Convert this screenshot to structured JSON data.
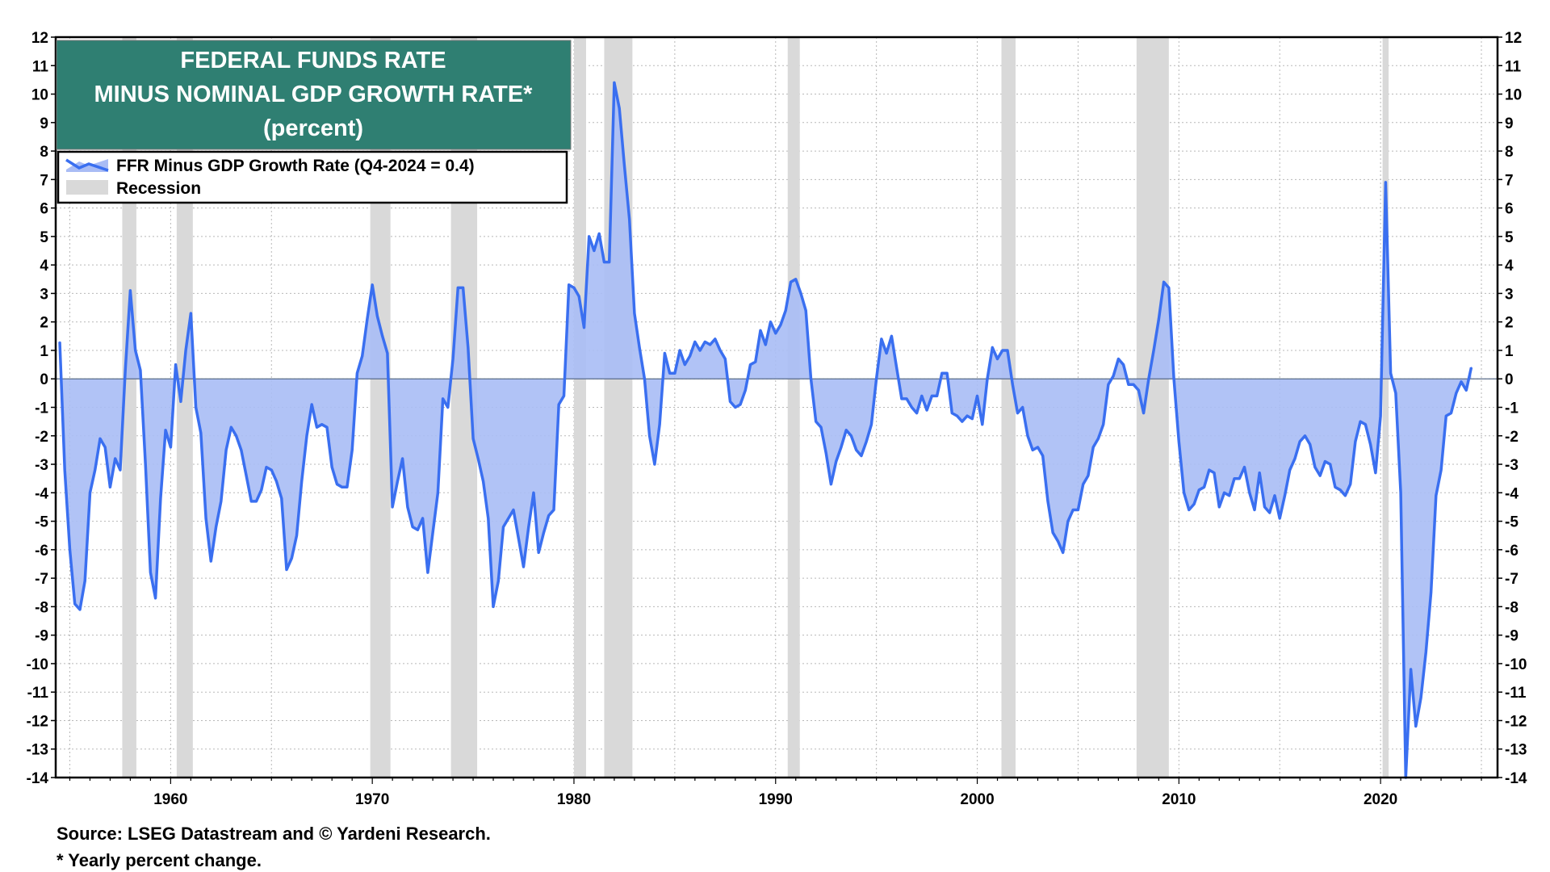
{
  "colors": {
    "series_line": "#3a6ff0",
    "series_fill": "#a9bcf5",
    "recession": "#d9d9d9",
    "title_bg": "#2f7f72",
    "title_text": "#ffffff"
  },
  "chart_data": {
    "type": "area",
    "title_lines": [
      "FEDERAL FUNDS RATE",
      "MINUS NOMINAL GDP GROWTH RATE*",
      "(percent)"
    ],
    "xlabel": "",
    "ylabel": "",
    "xlim": [
      1954.3,
      2025.8
    ],
    "ylim": [
      -14,
      12
    ],
    "y_ticks": [
      -14,
      -13,
      -12,
      -11,
      -10,
      -9,
      -8,
      -7,
      -6,
      -5,
      -4,
      -3,
      -2,
      -1,
      0,
      1,
      2,
      3,
      4,
      5,
      6,
      7,
      8,
      9,
      10,
      11,
      12
    ],
    "y_tick_labels": [
      "-14",
      "-13",
      "-12",
      "-11",
      "-10",
      "-9",
      "-8",
      "-7",
      "-6",
      "-5",
      "-4",
      "-3",
      "-2",
      "-1",
      "0",
      "1",
      "2",
      "3",
      "4",
      "5",
      "6",
      "7",
      "8",
      "9",
      "10",
      "11",
      "12"
    ],
    "x_ticks": [
      1960,
      1970,
      1980,
      1990,
      2000,
      2010,
      2020
    ],
    "x_tick_labels": [
      "1960",
      "1970",
      "1980",
      "1990",
      "2000",
      "2010",
      "2020"
    ],
    "grid": true,
    "legend": {
      "position": "top-left",
      "entries": [
        {
          "label": "FFR Minus GDP Growth Rate  (Q4-2024 = 0.4)",
          "kind": "line-area"
        },
        {
          "label": "Recession",
          "kind": "band"
        }
      ]
    },
    "recessions": [
      [
        1957.6,
        1958.3
      ],
      [
        1960.3,
        1961.1
      ],
      [
        1969.9,
        1970.9
      ],
      [
        1973.9,
        1975.2
      ],
      [
        1980.0,
        1980.6
      ],
      [
        1981.5,
        1982.9
      ],
      [
        1990.6,
        1991.2
      ],
      [
        2001.2,
        2001.9
      ],
      [
        2007.9,
        2009.5
      ],
      [
        2020.1,
        2020.4
      ]
    ],
    "series": [
      {
        "name": "FFR Minus GDP Growth Rate",
        "points": [
          [
            1954.5,
            1.3
          ],
          [
            1954.75,
            -3.2
          ],
          [
            1955.0,
            -6.0
          ],
          [
            1955.25,
            -7.9
          ],
          [
            1955.5,
            -8.1
          ],
          [
            1955.75,
            -7.1
          ],
          [
            1956.0,
            -4.0
          ],
          [
            1956.25,
            -3.2
          ],
          [
            1956.5,
            -2.1
          ],
          [
            1956.75,
            -2.4
          ],
          [
            1957.0,
            -3.8
          ],
          [
            1957.25,
            -2.8
          ],
          [
            1957.5,
            -3.2
          ],
          [
            1957.75,
            0.3
          ],
          [
            1958.0,
            3.1
          ],
          [
            1958.25,
            1.0
          ],
          [
            1958.5,
            0.3
          ],
          [
            1958.75,
            -3.0
          ],
          [
            1959.0,
            -6.8
          ],
          [
            1959.25,
            -7.7
          ],
          [
            1959.5,
            -4.2
          ],
          [
            1959.75,
            -1.8
          ],
          [
            1960.0,
            -2.4
          ],
          [
            1960.25,
            0.5
          ],
          [
            1960.5,
            -0.8
          ],
          [
            1960.75,
            1.0
          ],
          [
            1961.0,
            2.3
          ],
          [
            1961.25,
            -1.0
          ],
          [
            1961.5,
            -1.9
          ],
          [
            1961.75,
            -4.9
          ],
          [
            1962.0,
            -6.4
          ],
          [
            1962.25,
            -5.2
          ],
          [
            1962.5,
            -4.3
          ],
          [
            1962.75,
            -2.5
          ],
          [
            1963.0,
            -1.7
          ],
          [
            1963.25,
            -2.0
          ],
          [
            1963.5,
            -2.5
          ],
          [
            1963.75,
            -3.4
          ],
          [
            1964.0,
            -4.3
          ],
          [
            1964.25,
            -4.3
          ],
          [
            1964.5,
            -3.9
          ],
          [
            1964.75,
            -3.1
          ],
          [
            1965.0,
            -3.2
          ],
          [
            1965.25,
            -3.6
          ],
          [
            1965.5,
            -4.2
          ],
          [
            1965.75,
            -6.7
          ],
          [
            1966.0,
            -6.3
          ],
          [
            1966.25,
            -5.5
          ],
          [
            1966.5,
            -3.6
          ],
          [
            1966.75,
            -2.0
          ],
          [
            1967.0,
            -0.9
          ],
          [
            1967.25,
            -1.7
          ],
          [
            1967.5,
            -1.6
          ],
          [
            1967.75,
            -1.7
          ],
          [
            1968.0,
            -3.1
          ],
          [
            1968.25,
            -3.7
          ],
          [
            1968.5,
            -3.8
          ],
          [
            1968.75,
            -3.8
          ],
          [
            1969.0,
            -2.5
          ],
          [
            1969.25,
            0.2
          ],
          [
            1969.5,
            0.8
          ],
          [
            1969.75,
            2.1
          ],
          [
            1970.0,
            3.3
          ],
          [
            1970.25,
            2.2
          ],
          [
            1970.5,
            1.5
          ],
          [
            1970.75,
            0.9
          ],
          [
            1971.0,
            -4.5
          ],
          [
            1971.25,
            -3.6
          ],
          [
            1971.5,
            -2.8
          ],
          [
            1971.75,
            -4.5
          ],
          [
            1972.0,
            -5.2
          ],
          [
            1972.25,
            -5.3
          ],
          [
            1972.5,
            -4.9
          ],
          [
            1972.75,
            -6.8
          ],
          [
            1973.0,
            -5.4
          ],
          [
            1973.25,
            -4.0
          ],
          [
            1973.5,
            -0.7
          ],
          [
            1973.75,
            -1.0
          ],
          [
            1974.0,
            0.7
          ],
          [
            1974.25,
            3.2
          ],
          [
            1974.5,
            3.2
          ],
          [
            1974.75,
            1.1
          ],
          [
            1975.0,
            -2.1
          ],
          [
            1975.25,
            -2.8
          ],
          [
            1975.5,
            -3.6
          ],
          [
            1975.75,
            -4.9
          ],
          [
            1976.0,
            -8.0
          ],
          [
            1976.25,
            -7.1
          ],
          [
            1976.5,
            -5.2
          ],
          [
            1976.75,
            -4.9
          ],
          [
            1977.0,
            -4.6
          ],
          [
            1977.25,
            -5.6
          ],
          [
            1977.5,
            -6.6
          ],
          [
            1977.75,
            -5.2
          ],
          [
            1978.0,
            -4.0
          ],
          [
            1978.25,
            -6.1
          ],
          [
            1978.5,
            -5.4
          ],
          [
            1978.75,
            -4.8
          ],
          [
            1979.0,
            -4.6
          ],
          [
            1979.25,
            -0.9
          ],
          [
            1979.5,
            -0.6
          ],
          [
            1979.75,
            3.3
          ],
          [
            1980.0,
            3.2
          ],
          [
            1980.25,
            2.9
          ],
          [
            1980.5,
            1.8
          ],
          [
            1980.75,
            5.0
          ],
          [
            1981.0,
            4.5
          ],
          [
            1981.25,
            5.1
          ],
          [
            1981.5,
            4.1
          ],
          [
            1981.75,
            4.1
          ],
          [
            1982.0,
            10.4
          ],
          [
            1982.25,
            9.5
          ],
          [
            1982.5,
            7.5
          ],
          [
            1982.75,
            5.6
          ],
          [
            1983.0,
            2.3
          ],
          [
            1983.25,
            1.1
          ],
          [
            1983.5,
            0.0
          ],
          [
            1983.75,
            -2.0
          ],
          [
            1984.0,
            -3.0
          ],
          [
            1984.25,
            -1.6
          ],
          [
            1984.5,
            0.9
          ],
          [
            1984.75,
            0.2
          ],
          [
            1985.0,
            0.2
          ],
          [
            1985.25,
            1.0
          ],
          [
            1985.5,
            0.5
          ],
          [
            1985.75,
            0.8
          ],
          [
            1986.0,
            1.3
          ],
          [
            1986.25,
            1.0
          ],
          [
            1986.5,
            1.3
          ],
          [
            1986.75,
            1.2
          ],
          [
            1987.0,
            1.4
          ],
          [
            1987.25,
            1.0
          ],
          [
            1987.5,
            0.7
          ],
          [
            1987.75,
            -0.8
          ],
          [
            1988.0,
            -1.0
          ],
          [
            1988.25,
            -0.9
          ],
          [
            1988.5,
            -0.4
          ],
          [
            1988.75,
            0.5
          ],
          [
            1989.0,
            0.6
          ],
          [
            1989.25,
            1.7
          ],
          [
            1989.5,
            1.2
          ],
          [
            1989.75,
            2.0
          ],
          [
            1990.0,
            1.6
          ],
          [
            1990.25,
            1.9
          ],
          [
            1990.5,
            2.4
          ],
          [
            1990.75,
            3.4
          ],
          [
            1991.0,
            3.5
          ],
          [
            1991.25,
            3.0
          ],
          [
            1991.5,
            2.4
          ],
          [
            1991.75,
            0.0
          ],
          [
            1992.0,
            -1.5
          ],
          [
            1992.25,
            -1.7
          ],
          [
            1992.5,
            -2.6
          ],
          [
            1992.75,
            -3.7
          ],
          [
            1993.0,
            -2.9
          ],
          [
            1993.25,
            -2.4
          ],
          [
            1993.5,
            -1.8
          ],
          [
            1993.75,
            -2.0
          ],
          [
            1994.0,
            -2.5
          ],
          [
            1994.25,
            -2.7
          ],
          [
            1994.5,
            -2.2
          ],
          [
            1994.75,
            -1.6
          ],
          [
            1995.0,
            0.0
          ],
          [
            1995.25,
            1.4
          ],
          [
            1995.5,
            0.9
          ],
          [
            1995.75,
            1.5
          ],
          [
            1996.0,
            0.4
          ],
          [
            1996.25,
            -0.7
          ],
          [
            1996.5,
            -0.7
          ],
          [
            1996.75,
            -1.0
          ],
          [
            1997.0,
            -1.2
          ],
          [
            1997.25,
            -0.6
          ],
          [
            1997.5,
            -1.1
          ],
          [
            1997.75,
            -0.6
          ],
          [
            1998.0,
            -0.6
          ],
          [
            1998.25,
            0.2
          ],
          [
            1998.5,
            0.2
          ],
          [
            1998.75,
            -1.2
          ],
          [
            1999.0,
            -1.3
          ],
          [
            1999.25,
            -1.5
          ],
          [
            1999.5,
            -1.3
          ],
          [
            1999.75,
            -1.4
          ],
          [
            2000.0,
            -0.6
          ],
          [
            2000.25,
            -1.6
          ],
          [
            2000.5,
            0.0
          ],
          [
            2000.75,
            1.1
          ],
          [
            2001.0,
            0.7
          ],
          [
            2001.25,
            1.0
          ],
          [
            2001.5,
            1.0
          ],
          [
            2001.75,
            -0.2
          ],
          [
            2002.0,
            -1.2
          ],
          [
            2002.25,
            -1.0
          ],
          [
            2002.5,
            -2.0
          ],
          [
            2002.75,
            -2.5
          ],
          [
            2003.0,
            -2.4
          ],
          [
            2003.25,
            -2.7
          ],
          [
            2003.5,
            -4.3
          ],
          [
            2003.75,
            -5.4
          ],
          [
            2004.0,
            -5.7
          ],
          [
            2004.25,
            -6.1
          ],
          [
            2004.5,
            -5.0
          ],
          [
            2004.75,
            -4.6
          ],
          [
            2005.0,
            -4.6
          ],
          [
            2005.25,
            -3.7
          ],
          [
            2005.5,
            -3.4
          ],
          [
            2005.75,
            -2.4
          ],
          [
            2006.0,
            -2.1
          ],
          [
            2006.25,
            -1.6
          ],
          [
            2006.5,
            -0.2
          ],
          [
            2006.75,
            0.1
          ],
          [
            2007.0,
            0.7
          ],
          [
            2007.25,
            0.5
          ],
          [
            2007.5,
            -0.2
          ],
          [
            2007.75,
            -0.2
          ],
          [
            2008.0,
            -0.4
          ],
          [
            2008.25,
            -1.2
          ],
          [
            2008.5,
            0.0
          ],
          [
            2008.75,
            1.0
          ],
          [
            2009.0,
            2.1
          ],
          [
            2009.25,
            3.4
          ],
          [
            2009.5,
            3.2
          ],
          [
            2009.75,
            0.0
          ],
          [
            2010.0,
            -2.2
          ],
          [
            2010.25,
            -4.0
          ],
          [
            2010.5,
            -4.6
          ],
          [
            2010.75,
            -4.4
          ],
          [
            2011.0,
            -3.9
          ],
          [
            2011.25,
            -3.8
          ],
          [
            2011.5,
            -3.2
          ],
          [
            2011.75,
            -3.3
          ],
          [
            2012.0,
            -4.5
          ],
          [
            2012.25,
            -4.0
          ],
          [
            2012.5,
            -4.1
          ],
          [
            2012.75,
            -3.5
          ],
          [
            2013.0,
            -3.5
          ],
          [
            2013.25,
            -3.1
          ],
          [
            2013.5,
            -4.0
          ],
          [
            2013.75,
            -4.6
          ],
          [
            2014.0,
            -3.3
          ],
          [
            2014.25,
            -4.5
          ],
          [
            2014.5,
            -4.7
          ],
          [
            2014.75,
            -4.1
          ],
          [
            2015.0,
            -4.9
          ],
          [
            2015.25,
            -4.1
          ],
          [
            2015.5,
            -3.2
          ],
          [
            2015.75,
            -2.8
          ],
          [
            2016.0,
            -2.2
          ],
          [
            2016.25,
            -2.0
          ],
          [
            2016.5,
            -2.3
          ],
          [
            2016.75,
            -3.1
          ],
          [
            2017.0,
            -3.4
          ],
          [
            2017.25,
            -2.9
          ],
          [
            2017.5,
            -3.0
          ],
          [
            2017.75,
            -3.8
          ],
          [
            2018.0,
            -3.9
          ],
          [
            2018.25,
            -4.1
          ],
          [
            2018.5,
            -3.7
          ],
          [
            2018.75,
            -2.2
          ],
          [
            2019.0,
            -1.5
          ],
          [
            2019.25,
            -1.6
          ],
          [
            2019.5,
            -2.3
          ],
          [
            2019.75,
            -3.3
          ],
          [
            2020.0,
            -1.3
          ],
          [
            2020.25,
            6.9
          ],
          [
            2020.5,
            0.2
          ],
          [
            2020.75,
            -0.5
          ],
          [
            2021.0,
            -4.0
          ],
          [
            2021.25,
            -14.0
          ],
          [
            2021.5,
            -10.2
          ],
          [
            2021.75,
            -12.2
          ],
          [
            2022.0,
            -11.2
          ],
          [
            2022.25,
            -9.6
          ],
          [
            2022.5,
            -7.5
          ],
          [
            2022.75,
            -4.1
          ],
          [
            2023.0,
            -3.2
          ],
          [
            2023.25,
            -1.3
          ],
          [
            2023.5,
            -1.2
          ],
          [
            2023.75,
            -0.5
          ],
          [
            2024.0,
            -0.1
          ],
          [
            2024.25,
            -0.4
          ],
          [
            2024.5,
            0.4
          ]
        ]
      }
    ]
  },
  "footer": {
    "source": "Source: LSEG Datastream and © Yardeni Research.",
    "note": "* Yearly percent change."
  }
}
